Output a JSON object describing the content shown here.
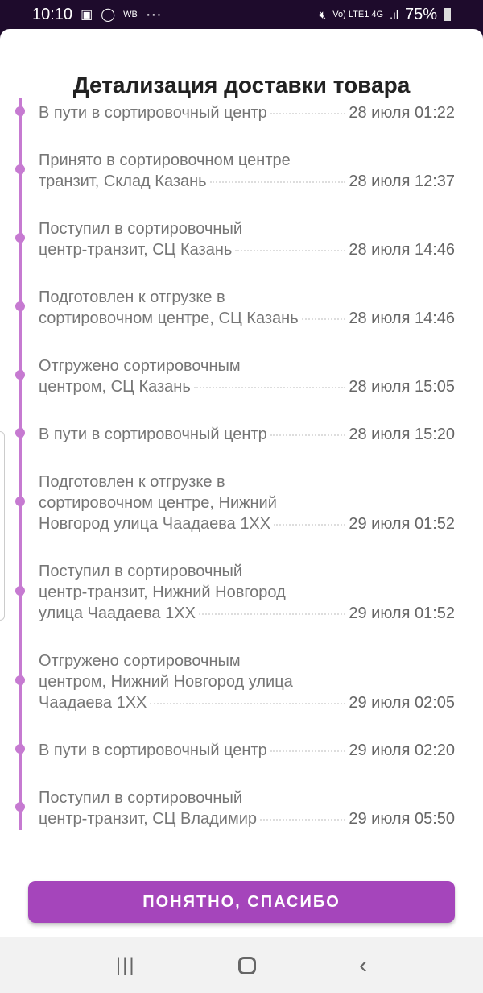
{
  "status_bar": {
    "time": "10:10",
    "wb": "WB",
    "more": "···",
    "network": "Vo) LTE1 4G",
    "battery": "75%"
  },
  "dialog": {
    "title": "Детализация доставки товара",
    "accent_color": "#a545bb",
    "events": [
      {
        "lines": [
          "В пути в сортировочный центр"
        ],
        "date": "28 июля 01:22"
      },
      {
        "lines": [
          "Принято в сортировочном центре",
          "транзит, Склад Казань"
        ],
        "date": "28 июля 12:37"
      },
      {
        "lines": [
          "Поступил в сортировочный",
          "центр-транзит, СЦ Казань"
        ],
        "date": "28 июля 14:46"
      },
      {
        "lines": [
          "Подготовлен к отгрузке в",
          "сортировочном центре, СЦ Казань"
        ],
        "date": "28 июля 14:46"
      },
      {
        "lines": [
          "Отгружено сортировочным",
          "центром, СЦ Казань"
        ],
        "date": "28 июля 15:05"
      },
      {
        "lines": [
          "В пути в сортировочный центр"
        ],
        "date": "28 июля 15:20"
      },
      {
        "lines": [
          "Подготовлен к отгрузке в",
          "сортировочном центре, Нижний",
          "Новгород улица Чаадаева 1ХХ"
        ],
        "date": "29 июля 01:52"
      },
      {
        "lines": [
          "Поступил в сортировочный",
          "центр-транзит, Нижний Новгород",
          "улица Чаадаева 1ХХ"
        ],
        "date": "29 июля 01:52"
      },
      {
        "lines": [
          "Отгружено сортировочным",
          "центром, Нижний Новгород улица",
          "Чаадаева 1ХХ"
        ],
        "date": "29 июля 02:05"
      },
      {
        "lines": [
          "В пути в сортировочный центр"
        ],
        "date": "29 июля 02:20"
      },
      {
        "lines": [
          "Поступил в сортировочный",
          "центр-транзит, СЦ Владимир"
        ],
        "date": "29 июля 05:50"
      }
    ],
    "button_label": "ПОНЯТНО, СПАСИБО"
  },
  "nav": {
    "recents": "recents-icon",
    "home": "home-icon",
    "back": "back-icon"
  }
}
